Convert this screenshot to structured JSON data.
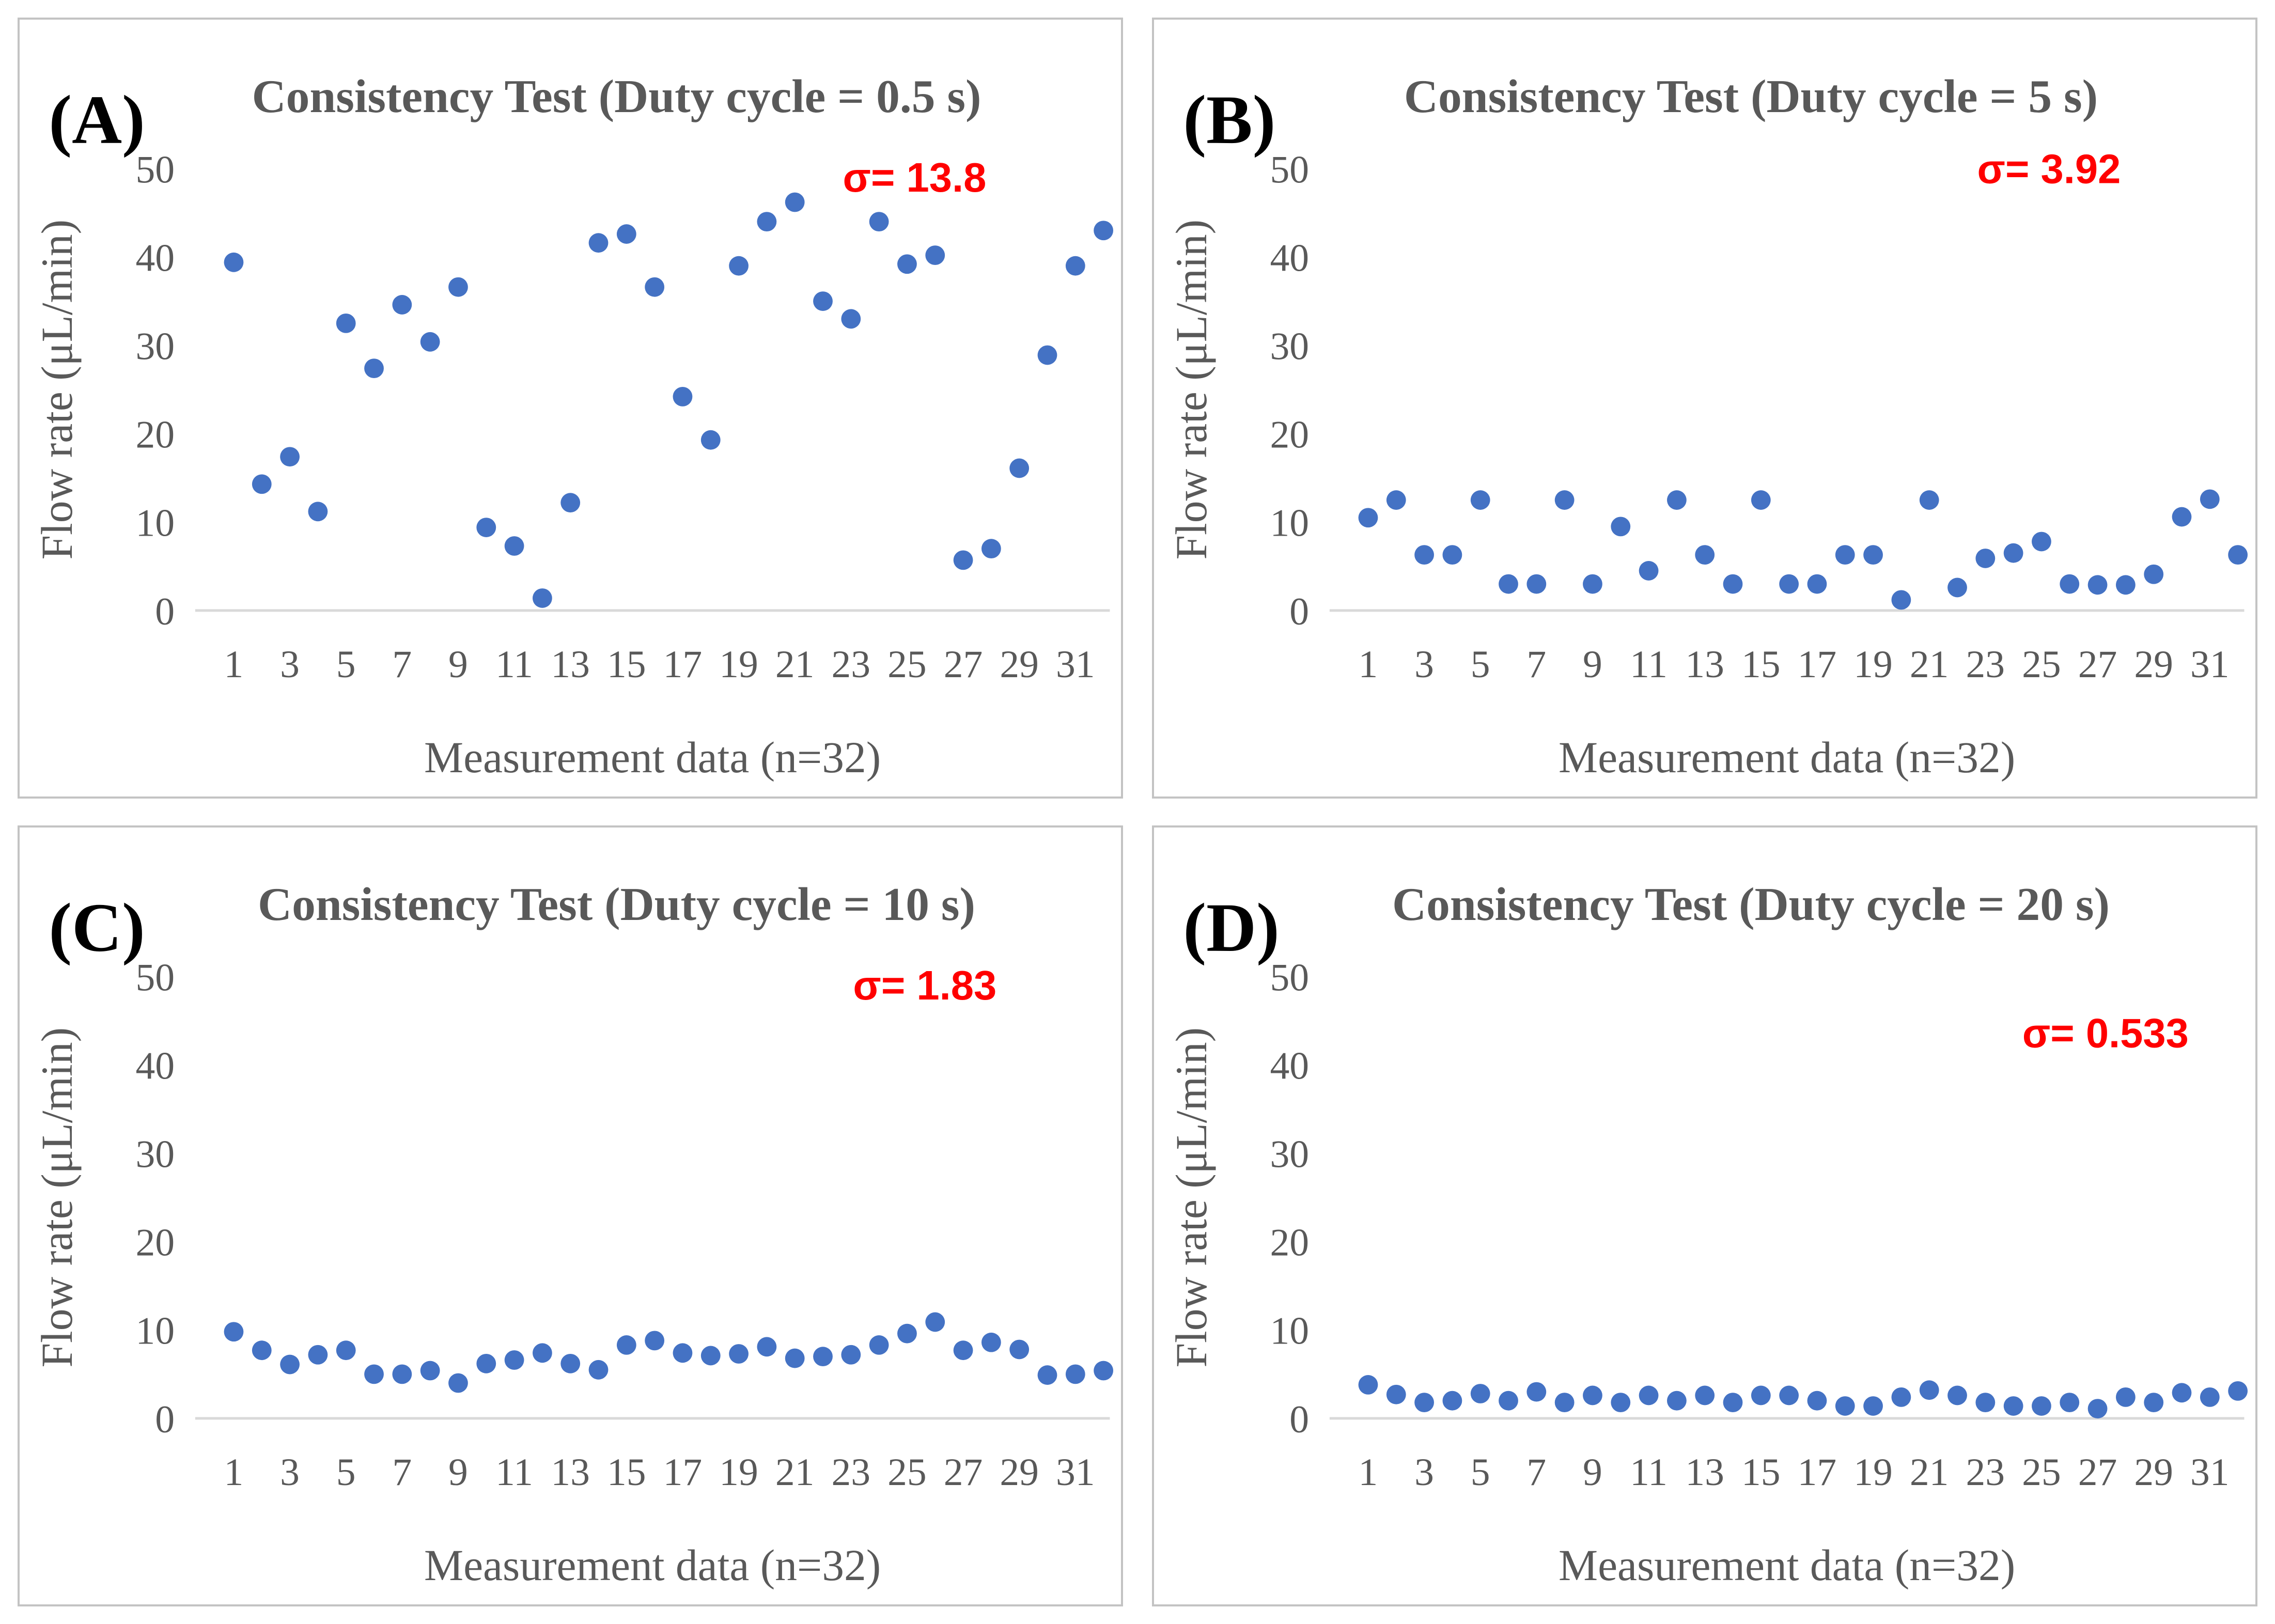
{
  "colors": {
    "point": "#4472c4",
    "annotation": "#ff0000",
    "text": "#595959",
    "axis_line": "#d9d9d9",
    "panel_border": "#c3c3c3",
    "background": "#ffffff"
  },
  "chart_data": [
    {
      "type": "scatter",
      "panel_label": "(A)",
      "title": "Consistency Test (Duty cycle = 0.5 s)",
      "sigma_annotation": "σ= 13.8",
      "sigma_value": 13.8,
      "xlabel": "Measurement data (n=32)",
      "ylabel": "Flow rate (μL/min)",
      "n": 32,
      "ylim": [
        0,
        50
      ],
      "yticks": [
        0,
        10,
        20,
        30,
        40,
        50
      ],
      "xticks": [
        1,
        3,
        5,
        7,
        9,
        11,
        13,
        15,
        17,
        19,
        21,
        23,
        25,
        27,
        29,
        31
      ],
      "point_color": "#4472c4",
      "values": [
        39.4,
        14.3,
        17.4,
        11.2,
        32.5,
        27.4,
        34.6,
        30.4,
        36.6,
        9.4,
        7.3,
        1.4,
        12.2,
        41.6,
        42.6,
        36.6,
        24.2,
        19.3,
        39.0,
        44.0,
        46.2,
        35.0,
        33.0,
        44.0,
        39.2,
        40.2,
        5.7,
        7.0,
        16.1,
        28.9,
        39.0,
        43.0
      ]
    },
    {
      "type": "scatter",
      "panel_label": "(B)",
      "title": "Consistency Test (Duty cycle = 5 s)",
      "sigma_annotation": "σ= 3.92",
      "sigma_value": 3.92,
      "xlabel": "Measurement data (n=32)",
      "ylabel": "Flow rate (μL/min)",
      "n": 32,
      "ylim": [
        0,
        50
      ],
      "yticks": [
        0,
        10,
        20,
        30,
        40,
        50
      ],
      "xticks": [
        1,
        3,
        5,
        7,
        9,
        11,
        13,
        15,
        17,
        19,
        21,
        23,
        25,
        27,
        29,
        31
      ],
      "point_color": "#4472c4",
      "values": [
        10.5,
        12.5,
        6.3,
        6.3,
        12.5,
        3.0,
        3.0,
        12.5,
        3.0,
        9.5,
        4.5,
        12.5,
        6.3,
        3.0,
        12.5,
        3.0,
        3.0,
        6.3,
        6.3,
        1.2,
        12.5,
        2.6,
        5.9,
        6.5,
        7.8,
        3.0,
        2.9,
        2.9,
        4.1,
        10.6,
        12.6,
        6.3
      ]
    },
    {
      "type": "scatter",
      "panel_label": "(C)",
      "title": "Consistency Test (Duty cycle = 10 s)",
      "sigma_annotation": "σ= 1.83",
      "sigma_value": 1.83,
      "xlabel": "Measurement data (n=32)",
      "ylabel": "Flow rate (μL/min)",
      "n": 32,
      "ylim": [
        0,
        50
      ],
      "yticks": [
        0,
        10,
        20,
        30,
        40,
        50
      ],
      "xticks": [
        1,
        3,
        5,
        7,
        9,
        11,
        13,
        15,
        17,
        19,
        21,
        23,
        25,
        27,
        29,
        31
      ],
      "point_color": "#4472c4",
      "values": [
        9.8,
        7.7,
        6.1,
        7.2,
        7.7,
        5.0,
        5.0,
        5.4,
        4.0,
        6.2,
        6.6,
        7.4,
        6.2,
        5.5,
        8.3,
        8.8,
        7.4,
        7.1,
        7.3,
        8.1,
        6.8,
        7.0,
        7.2,
        8.3,
        9.6,
        10.9,
        7.7,
        8.6,
        7.8,
        4.9,
        5.0,
        5.4
      ]
    },
    {
      "type": "scatter",
      "panel_label": "(D)",
      "title": "Consistency Test (Duty cycle = 20 s)",
      "sigma_annotation": "σ= 0.533",
      "sigma_value": 0.533,
      "xlabel": "Measurement data (n=32)",
      "ylabel": "Flow rate (μL/min)",
      "n": 32,
      "ylim": [
        0,
        50
      ],
      "yticks": [
        0,
        10,
        20,
        30,
        40,
        50
      ],
      "xticks": [
        1,
        3,
        5,
        7,
        9,
        11,
        13,
        15,
        17,
        19,
        21,
        23,
        25,
        27,
        29,
        31
      ],
      "point_color": "#4472c4",
      "values": [
        3.8,
        2.7,
        1.8,
        2.0,
        2.8,
        2.0,
        3.0,
        1.8,
        2.6,
        1.8,
        2.6,
        2.0,
        2.6,
        1.8,
        2.6,
        2.6,
        2.0,
        1.4,
        1.4,
        2.4,
        3.2,
        2.6,
        1.8,
        1.4,
        1.4,
        1.8,
        1.1,
        2.4,
        1.8,
        2.9,
        2.4,
        3.1
      ]
    }
  ]
}
